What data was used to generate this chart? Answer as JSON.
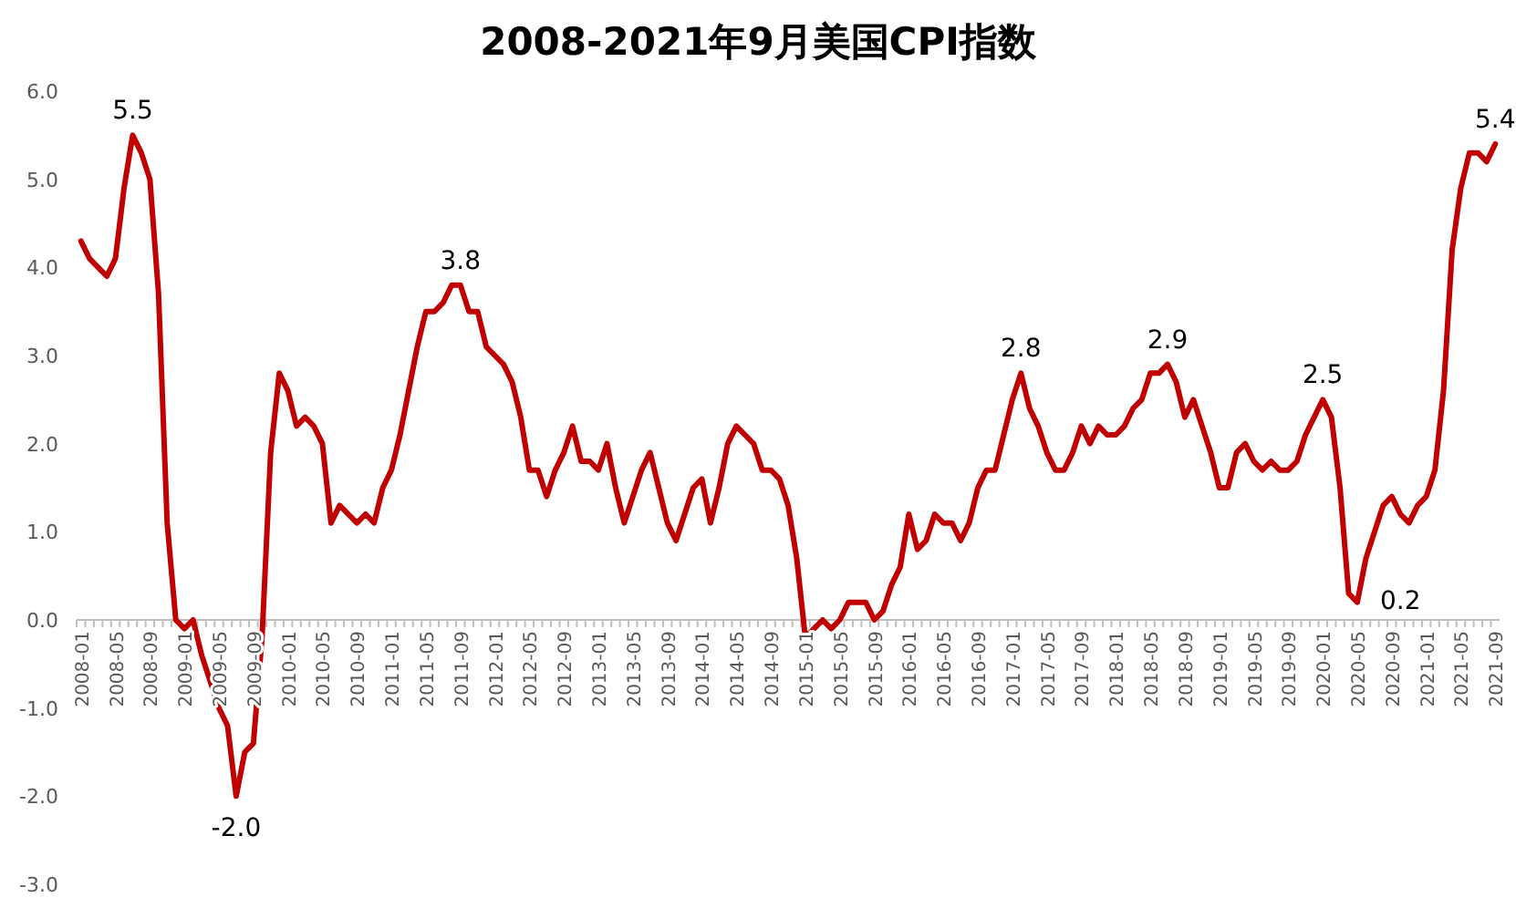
{
  "chart_data": {
    "type": "line",
    "title": "2008-2021年9月美国CPI指数",
    "categories": [
      "2008-01",
      null,
      null,
      null,
      "2008-05",
      null,
      null,
      null,
      "2008-09",
      null,
      null,
      null,
      "2009-01",
      null,
      null,
      null,
      "2009-05",
      null,
      null,
      null,
      "2009-09",
      null,
      null,
      null,
      "2010-01",
      null,
      null,
      null,
      "2010-05",
      null,
      null,
      null,
      "2010-09",
      null,
      null,
      null,
      "2011-01",
      null,
      null,
      null,
      "2011-05",
      null,
      null,
      null,
      "2011-09",
      null,
      null,
      null,
      "2012-01",
      null,
      null,
      null,
      "2012-05",
      null,
      null,
      null,
      "2012-09",
      null,
      null,
      null,
      "2013-01",
      null,
      null,
      null,
      "2013-05",
      null,
      null,
      null,
      "2013-09",
      null,
      null,
      null,
      "2014-01",
      null,
      null,
      null,
      "2014-05",
      null,
      null,
      null,
      "2014-09",
      null,
      null,
      null,
      "2015-01",
      null,
      null,
      null,
      "2015-05",
      null,
      null,
      null,
      "2015-09",
      null,
      null,
      null,
      "2016-01",
      null,
      null,
      null,
      "2016-05",
      null,
      null,
      null,
      "2016-09",
      null,
      null,
      null,
      "2017-01",
      null,
      null,
      null,
      "2017-05",
      null,
      null,
      null,
      "2017-09",
      null,
      null,
      null,
      "2018-01",
      null,
      null,
      null,
      "2018-05",
      null,
      null,
      null,
      "2018-09",
      null,
      null,
      null,
      "2019-01",
      null,
      null,
      null,
      "2019-05",
      null,
      null,
      null,
      "2019-09",
      null,
      null,
      null,
      "2020-01",
      null,
      null,
      null,
      "2020-05",
      null,
      null,
      null,
      "2020-09",
      null,
      null,
      null,
      "2021-01",
      null,
      null,
      null,
      "2021-05",
      null,
      null,
      null,
      "2021-09"
    ],
    "values": [
      4.3,
      4.1,
      4.0,
      3.9,
      4.1,
      4.9,
      5.5,
      5.3,
      5.0,
      3.7,
      1.1,
      0.0,
      -0.1,
      0.0,
      -0.4,
      -0.7,
      -1.0,
      -1.2,
      -2.0,
      -1.5,
      -1.4,
      -0.2,
      1.9,
      2.8,
      2.6,
      2.2,
      2.3,
      2.2,
      2.0,
      1.1,
      1.3,
      1.2,
      1.1,
      1.2,
      1.1,
      1.5,
      1.7,
      2.1,
      2.6,
      3.1,
      3.5,
      3.5,
      3.6,
      3.8,
      3.8,
      3.5,
      3.5,
      3.1,
      3.0,
      2.9,
      2.7,
      2.3,
      1.7,
      1.7,
      1.4,
      1.7,
      1.9,
      2.2,
      1.8,
      1.8,
      1.7,
      2.0,
      1.5,
      1.1,
      1.4,
      1.7,
      1.9,
      1.5,
      1.1,
      0.9,
      1.2,
      1.5,
      1.6,
      1.1,
      1.5,
      2.0,
      2.2,
      2.1,
      2.0,
      1.7,
      1.7,
      1.6,
      1.3,
      0.7,
      -0.2,
      -0.1,
      0.0,
      -0.1,
      0.0,
      0.2,
      0.2,
      0.2,
      0.0,
      0.1,
      0.4,
      0.6,
      1.2,
      0.8,
      0.9,
      1.2,
      1.1,
      1.1,
      0.9,
      1.1,
      1.5,
      1.7,
      1.7,
      2.1,
      2.5,
      2.8,
      2.4,
      2.2,
      1.9,
      1.7,
      1.7,
      1.9,
      2.2,
      2.0,
      2.2,
      2.1,
      2.1,
      2.2,
      2.4,
      2.5,
      2.8,
      2.8,
      2.9,
      2.7,
      2.3,
      2.5,
      2.2,
      1.9,
      1.5,
      1.5,
      1.9,
      2.0,
      1.8,
      1.7,
      1.8,
      1.7,
      1.7,
      1.8,
      2.1,
      2.3,
      2.5,
      2.3,
      1.5,
      0.3,
      0.2,
      0.7,
      1.0,
      1.3,
      1.4,
      1.2,
      1.1,
      1.3,
      1.4,
      1.7,
      2.6,
      4.2,
      4.9,
      5.3,
      5.3,
      5.2,
      5.4
    ],
    "value_labels": [
      null,
      null,
      null,
      null,
      null,
      null,
      "5.5",
      null,
      null,
      null,
      null,
      null,
      null,
      null,
      null,
      null,
      null,
      null,
      "-2.0",
      null,
      null,
      null,
      null,
      null,
      null,
      null,
      null,
      null,
      null,
      null,
      null,
      null,
      null,
      null,
      null,
      null,
      null,
      null,
      null,
      null,
      null,
      null,
      null,
      null,
      "3.8",
      null,
      null,
      null,
      null,
      null,
      null,
      null,
      null,
      null,
      null,
      null,
      null,
      null,
      null,
      null,
      null,
      null,
      null,
      null,
      null,
      null,
      null,
      null,
      null,
      null,
      null,
      null,
      null,
      null,
      null,
      null,
      null,
      null,
      null,
      null,
      null,
      null,
      null,
      null,
      null,
      null,
      null,
      null,
      null,
      null,
      null,
      null,
      null,
      null,
      null,
      null,
      null,
      null,
      null,
      null,
      null,
      null,
      null,
      null,
      null,
      null,
      null,
      null,
      null,
      "2.8",
      null,
      null,
      null,
      null,
      null,
      null,
      null,
      null,
      null,
      null,
      null,
      null,
      null,
      null,
      null,
      null,
      "2.9",
      null,
      null,
      null,
      null,
      null,
      null,
      null,
      null,
      null,
      null,
      null,
      null,
      null,
      null,
      null,
      null,
      null,
      "2.5",
      null,
      null,
      null,
      "0.2",
      null,
      null,
      null,
      null,
      null,
      null,
      null,
      null,
      null,
      null,
      null,
      null,
      null,
      null,
      null,
      "5.4"
    ],
    "color": "#c00000",
    "ylim": [
      -3,
      6
    ],
    "yticks": [
      {
        "value": -3,
        "label": "-3.0"
      },
      {
        "value": -2,
        "label": "-2.0"
      },
      {
        "value": -1,
        "label": "-1.0"
      },
      {
        "value": 0,
        "label": "0.0"
      },
      {
        "value": 1,
        "label": "1.0"
      },
      {
        "value": 2,
        "label": "2.0"
      },
      {
        "value": 3,
        "label": "3.0"
      },
      {
        "value": 4,
        "label": "4.0"
      },
      {
        "value": 5,
        "label": "5.0"
      },
      {
        "value": 6,
        "label": "6.0"
      }
    ],
    "line_style": "solid"
  }
}
